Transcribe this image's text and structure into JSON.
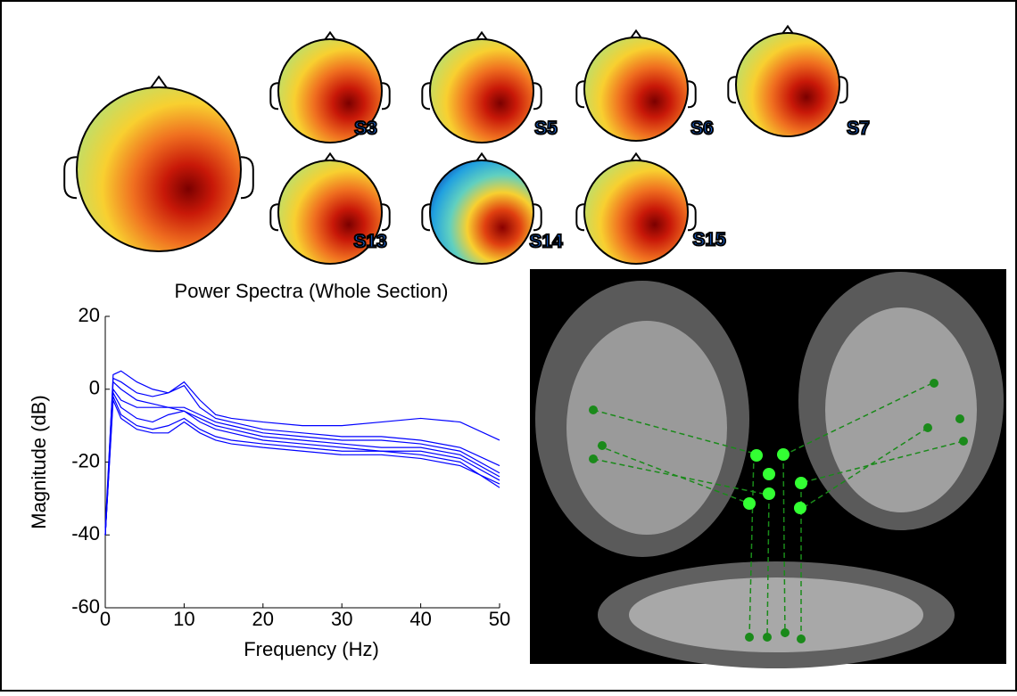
{
  "chart_data": {
    "type": "line",
    "title": "Power Spectra (Whole Section)",
    "x_label": "Frequency (Hz)",
    "y_label": "Magnitude (dB)",
    "x": [
      0,
      1,
      2,
      4,
      6,
      8,
      10,
      12,
      14,
      16,
      20,
      25,
      30,
      35,
      40,
      45,
      50
    ],
    "series": [
      {
        "color": "#0000ff",
        "values": [
          -40,
          4,
          5,
          2,
          0,
          -1,
          2,
          -3,
          -7,
          -8,
          -9,
          -10,
          -10,
          -9,
          -8,
          -9,
          -14
        ]
      },
      {
        "color": "#0000ff",
        "values": [
          -38,
          3,
          2,
          -1,
          -2,
          -1,
          1,
          -5,
          -8,
          -9,
          -11,
          -12,
          -13,
          -13,
          -14,
          -16,
          -21
        ]
      },
      {
        "color": "#0000ff",
        "values": [
          -40,
          2,
          0,
          -3,
          -4,
          -5,
          -5,
          -7,
          -9,
          -10,
          -12,
          -13,
          -14,
          -14,
          -15,
          -17,
          -23
        ]
      },
      {
        "color": "#0000ff",
        "values": [
          -40,
          0,
          -3,
          -5,
          -5,
          -5,
          -6,
          -8,
          -10,
          -11,
          -13,
          -14,
          -15,
          -16,
          -16,
          -18,
          -24
        ]
      },
      {
        "color": "#0000ff",
        "values": [
          -40,
          -1,
          -5,
          -8,
          -9,
          -7,
          -6,
          -9,
          -11,
          -12,
          -14,
          -15,
          -16,
          -17,
          -17,
          -19,
          -25
        ]
      },
      {
        "color": "#0000ff",
        "values": [
          -40,
          -2,
          -7,
          -10,
          -11,
          -10,
          -8,
          -11,
          -13,
          -14,
          -15,
          -16,
          -17,
          -17,
          -18,
          -20,
          -27
        ]
      },
      {
        "color": "#0000ff",
        "values": [
          -40,
          -3,
          -8,
          -11,
          -12,
          -12,
          -9,
          -12,
          -14,
          -15,
          -16,
          -17,
          -18,
          -18,
          -19,
          -21,
          -26
        ]
      }
    ],
    "xlim": [
      0,
      50
    ],
    "xticks": [
      0,
      10,
      20,
      30,
      40,
      50
    ],
    "ylim": [
      -60,
      20
    ],
    "yticks": [
      -60,
      -40,
      -20,
      0,
      20
    ],
    "grid": false
  },
  "scalp_maps": {
    "labels": [
      "S3",
      "S5",
      "S6",
      "S7",
      "S13",
      "S14",
      "S15"
    ]
  }
}
